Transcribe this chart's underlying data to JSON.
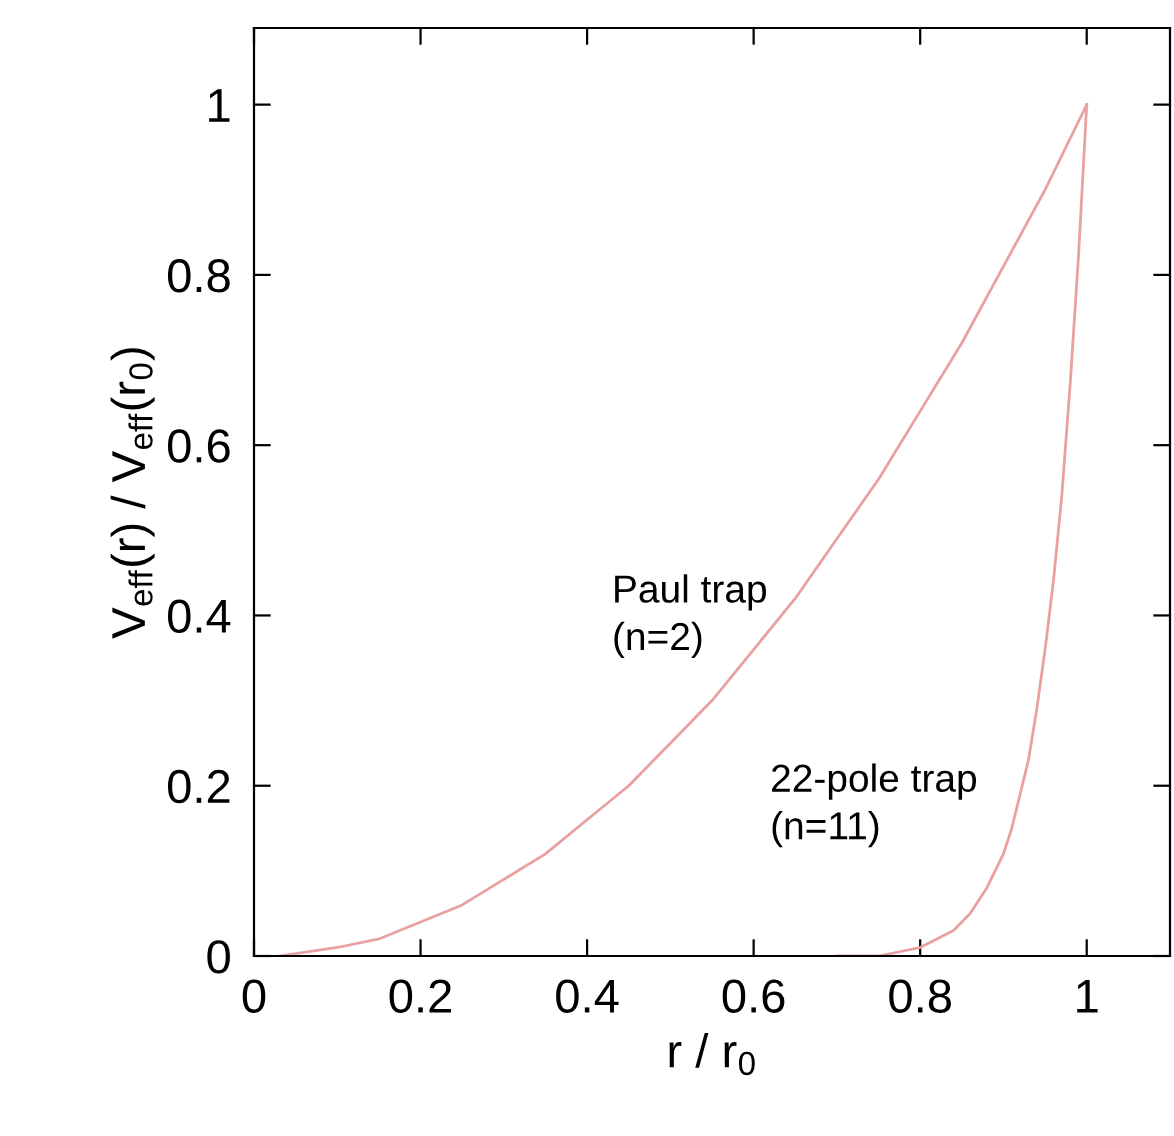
{
  "chart_data": {
    "type": "line",
    "xlabel": "r / r$_{0}$",
    "ylabel": "V$_{eff}$(r) / V$_{eff}$(r$_{0}$)",
    "xlim": [
      0,
      1.1
    ],
    "ylim": [
      0,
      1.09
    ],
    "xticks": [
      0,
      0.2,
      0.4,
      0.6,
      0.8,
      1
    ],
    "yticks": [
      0,
      0.2,
      0.4,
      0.6,
      0.8,
      1
    ],
    "grid": false,
    "legend": false,
    "marker": "none",
    "line_style": "solid",
    "series": [
      {
        "name": "Paul trap\n(n=2)",
        "color": "#e8a0a0",
        "x": [
          0.03,
          0.1,
          0.15,
          0.2,
          0.25,
          0.3,
          0.35,
          0.4,
          0.45,
          0.5,
          0.55,
          0.6,
          0.65,
          0.7,
          0.75,
          0.8,
          0.85,
          0.9,
          0.95,
          1
        ],
        "values": [
          0.0,
          0.01,
          0.02,
          0.04,
          0.06,
          0.09,
          0.12,
          0.16,
          0.2,
          0.25,
          0.3,
          0.36,
          0.42,
          0.49,
          0.56,
          0.64,
          0.72,
          0.81,
          0.9,
          1
        ]
      },
      {
        "name": "22-pole trap\n(n=11)",
        "color": "#e8a0a0",
        "x": [
          0.7,
          0.75,
          0.8,
          0.82,
          0.84,
          0.86,
          0.88,
          0.9,
          0.91,
          0.92,
          0.93,
          0.94,
          0.95,
          0.96,
          0.97,
          0.98,
          0.99,
          1
        ],
        "values": [
          0.0,
          0.0,
          0.01,
          0.02,
          0.03,
          0.05,
          0.08,
          0.12,
          0.15,
          0.19,
          0.23,
          0.29,
          0.36,
          0.44,
          0.54,
          0.67,
          0.82,
          1
        ]
      }
    ]
  }
}
